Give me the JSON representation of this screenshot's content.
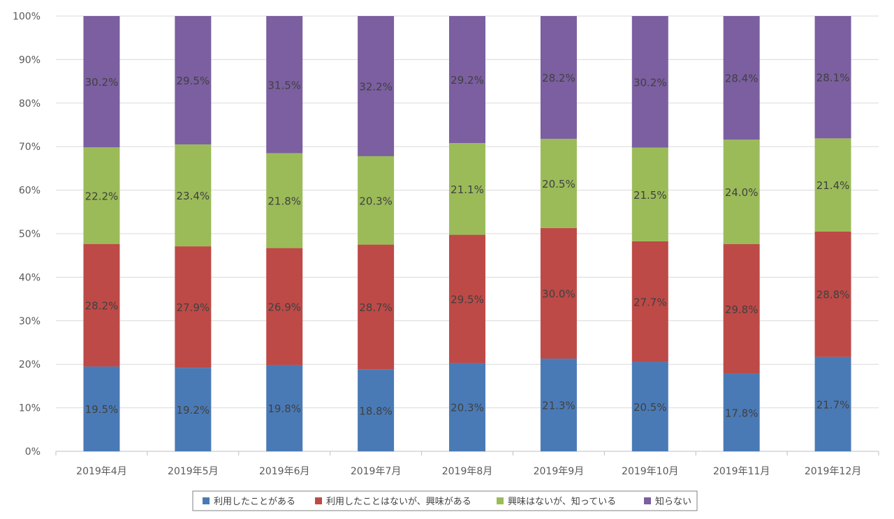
{
  "chart_data": {
    "type": "bar",
    "stacked": true,
    "percent_stacked": true,
    "title": "",
    "xlabel": "",
    "ylabel": "",
    "ylim": [
      0,
      100
    ],
    "yticks": [
      "0%",
      "10%",
      "20%",
      "30%",
      "40%",
      "50%",
      "60%",
      "70%",
      "80%",
      "90%",
      "100%"
    ],
    "categories": [
      "2019年4月",
      "2019年5月",
      "2019年6月",
      "2019年7月",
      "2019年8月",
      "2019年9月",
      "2019年10月",
      "2019年11月",
      "2019年12月"
    ],
    "series": [
      {
        "name": "利用したことがある",
        "color": "#4a7ab5",
        "values": [
          19.5,
          19.2,
          19.8,
          18.8,
          20.3,
          21.3,
          20.5,
          17.8,
          21.7
        ]
      },
      {
        "name": "利用したことはないが、興味がある",
        "color": "#bd4a47",
        "values": [
          28.2,
          27.9,
          26.9,
          28.7,
          29.5,
          30.0,
          27.7,
          29.8,
          28.8
        ]
      },
      {
        "name": "興味はないが、知っている",
        "color": "#9bbb59",
        "values": [
          22.2,
          23.4,
          21.8,
          20.3,
          21.1,
          20.5,
          21.5,
          24.0,
          21.4
        ]
      },
      {
        "name": "知らない",
        "color": "#7b5fa0",
        "values": [
          30.2,
          29.5,
          31.5,
          32.2,
          29.2,
          28.2,
          30.2,
          28.4,
          28.1
        ]
      }
    ],
    "data_labels": true,
    "grid": true,
    "legend": "bottom"
  },
  "colors": {
    "grid": "#d9d9d9",
    "axis": "#bfbfbf",
    "legend_border": "#808080"
  }
}
